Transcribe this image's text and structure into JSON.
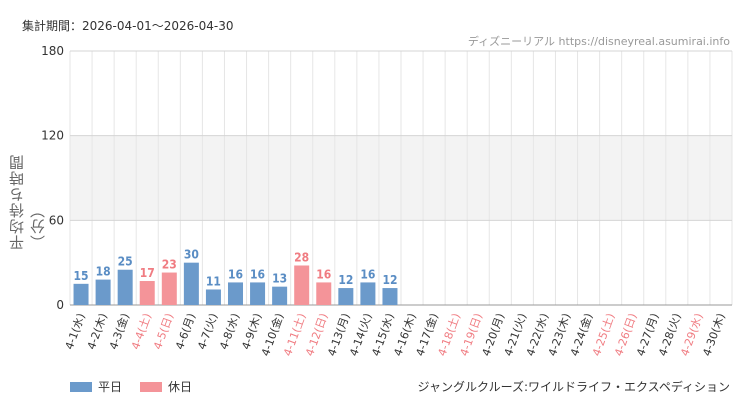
{
  "header": {
    "period": "集計期間：2026-04-01〜2026-04-30",
    "credit": "ディズニーリアル https://disneyreal.asumirai.info"
  },
  "colors": {
    "weekday": "#6b9acb",
    "holiday": "#f49499",
    "weekday_text": "#5a8dc4",
    "holiday_text": "#f07c82",
    "band": "#f3f3f3"
  },
  "chart_data": {
    "type": "bar",
    "ylabel": "平均待ち時間（分）",
    "ylim": [
      0,
      180
    ],
    "yticks": [
      0,
      60,
      120,
      180
    ],
    "highlight_band": [
      60,
      120
    ],
    "categories": [
      "4-1(水)",
      "4-2(木)",
      "4-3(金)",
      "4-4(土)",
      "4-5(日)",
      "4-6(月)",
      "4-7(火)",
      "4-8(水)",
      "4-9(木)",
      "4-10(金)",
      "4-11(土)",
      "4-12(日)",
      "4-13(月)",
      "4-14(火)",
      "4-15(水)",
      "4-16(木)",
      "4-17(金)",
      "4-18(土)",
      "4-19(日)",
      "4-20(月)",
      "4-21(火)",
      "4-22(水)",
      "4-23(木)",
      "4-24(金)",
      "4-25(土)",
      "4-26(日)",
      "4-27(月)",
      "4-28(火)",
      "4-29(水)",
      "4-30(木)"
    ],
    "holiday": [
      false,
      false,
      false,
      true,
      true,
      false,
      false,
      false,
      false,
      false,
      true,
      true,
      false,
      false,
      false,
      false,
      false,
      true,
      true,
      false,
      false,
      false,
      false,
      false,
      true,
      true,
      false,
      false,
      true,
      false
    ],
    "values": [
      15,
      18,
      25,
      17,
      23,
      30,
      11,
      16,
      16,
      13,
      28,
      16,
      12,
      16,
      12,
      null,
      null,
      null,
      null,
      null,
      null,
      null,
      null,
      null,
      null,
      null,
      null,
      null,
      null,
      null
    ],
    "series_names": [
      "平日",
      "休日"
    ]
  },
  "footer": {
    "legend_weekday": "平日",
    "legend_holiday": "休日",
    "attraction": "ジャングルクルーズ:ワイルドライフ・エクスペディション"
  }
}
